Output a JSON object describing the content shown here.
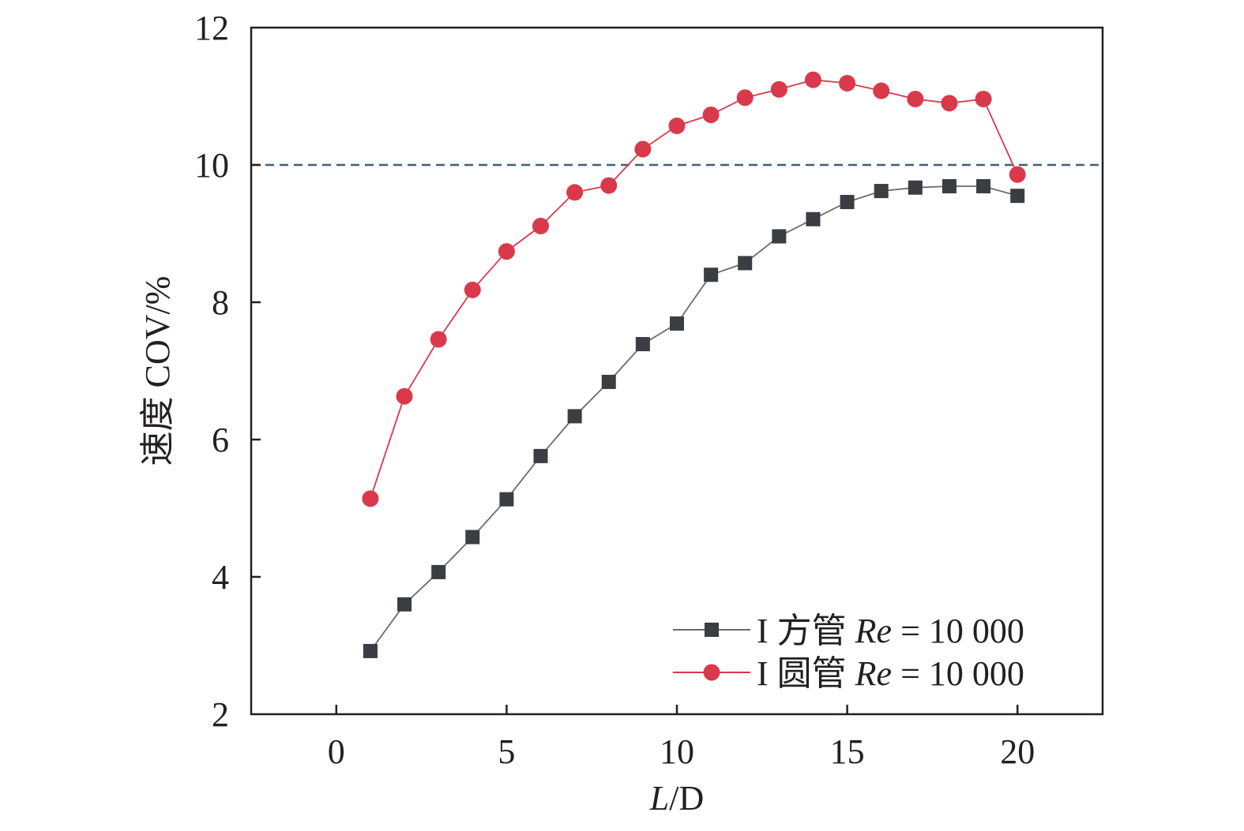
{
  "chart_data": {
    "type": "line",
    "xlabel": {
      "italic": "L",
      "rest": "/D"
    },
    "ylabel": "速度 COV/%",
    "xlim": [
      -2.5,
      22.5
    ],
    "ylim": [
      2,
      12
    ],
    "xticks": [
      0,
      5,
      10,
      15,
      20
    ],
    "yticks": [
      2,
      4,
      6,
      8,
      10,
      12
    ],
    "xtick_labels": [
      "0",
      "5",
      "10",
      "15",
      "20"
    ],
    "ytick_labels": [
      "2",
      "4",
      "6",
      "8",
      "10",
      "12"
    ],
    "reference_line": {
      "y": 10,
      "style": "dashed",
      "color": "#3d5f7a"
    },
    "grid": false,
    "legend": {
      "position": "bottom-right"
    },
    "x": [
      1,
      2,
      3,
      4,
      5,
      6,
      7,
      8,
      9,
      10,
      11,
      12,
      13,
      14,
      15,
      16,
      17,
      18,
      19,
      20
    ],
    "series": [
      {
        "name": "I 方管 Re = 10 000",
        "legend_parts": {
          "prefix": "I 方管 ",
          "italic": "Re",
          "suffix": " = 10 000"
        },
        "marker": "square",
        "color": "#3a3d42",
        "line_color": "#6b6b6b",
        "values": [
          2.92,
          3.6,
          4.07,
          4.58,
          5.13,
          5.76,
          6.34,
          6.84,
          7.39,
          7.69,
          8.4,
          8.57,
          8.96,
          9.21,
          9.46,
          9.62,
          9.67,
          9.69,
          9.69,
          9.55
        ]
      },
      {
        "name": "I 圆管 Re = 10 000",
        "legend_parts": {
          "prefix": "I 圆管 ",
          "italic": "Re",
          "suffix": " = 10 000"
        },
        "marker": "circle",
        "color": "#d9394a",
        "line_color": "#d9394a",
        "values": [
          5.14,
          6.63,
          7.46,
          8.18,
          8.74,
          9.11,
          9.6,
          9.7,
          10.23,
          10.57,
          10.73,
          10.98,
          11.1,
          11.24,
          11.19,
          11.08,
          10.96,
          10.9,
          10.96,
          9.86
        ]
      }
    ]
  }
}
